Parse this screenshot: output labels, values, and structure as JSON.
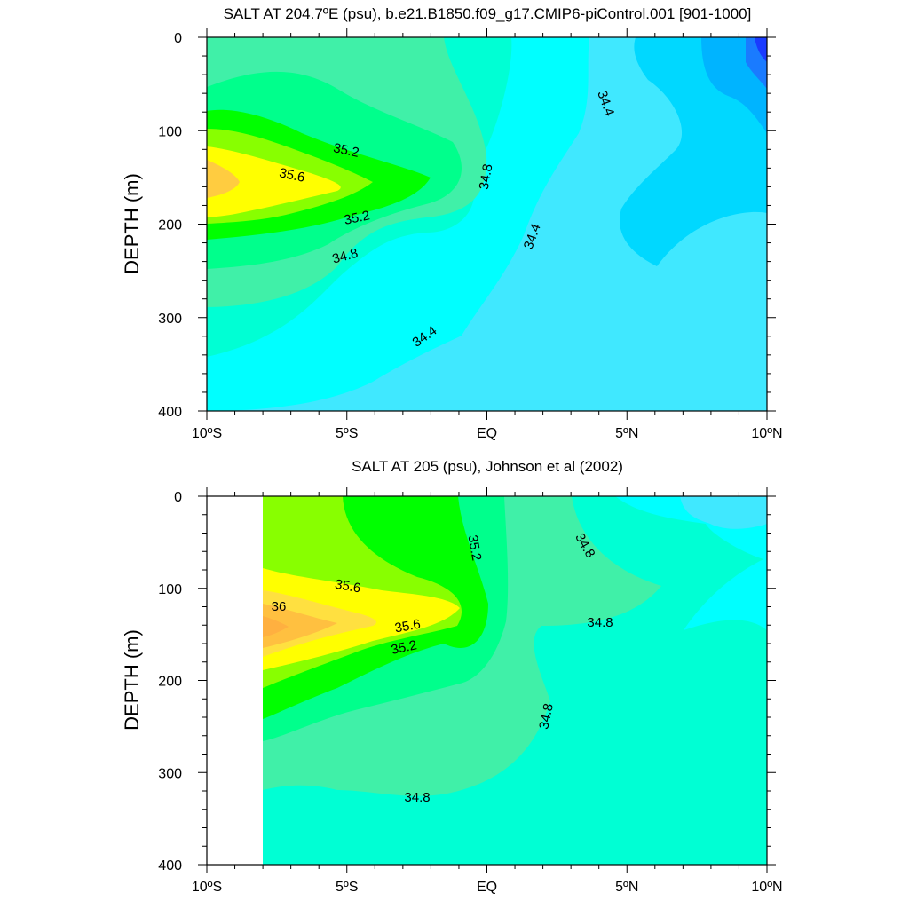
{
  "chart_data": [
    {
      "type": "contour",
      "title": "SALT AT 204.7ºE (psu), b.e21.B1850.f09_g17.CMIP6-piControl.001 [901-1000]",
      "ylabel": "DEPTH (m)",
      "xlabel": "",
      "x_ticks": [
        "10ºS",
        "5ºS",
        "EQ",
        "5ºN",
        "10ºN"
      ],
      "y_ticks": [
        "0",
        "100",
        "200",
        "300",
        "400"
      ],
      "xlim": [
        -10,
        10
      ],
      "ylim": [
        0,
        400
      ],
      "y_reversed": true,
      "contour_interval": 0.2,
      "contour_labels": [
        "35.2",
        "35.6",
        "35.2",
        "34.8",
        "34.8",
        "34.4",
        "34.4",
        "34.4"
      ],
      "salinity_range": [
        33.6,
        35.8
      ],
      "features": [
        {
          "description": "salinity maximum core",
          "lat": -10,
          "depth": 160,
          "value": 35.7
        },
        {
          "description": "fresh surface water",
          "lat": 10,
          "depth": 10,
          "value": 33.7
        }
      ],
      "colors": [
        "#1a3bff",
        "#1a7bff",
        "#00b4ff",
        "#00d8ff",
        "#40e8ff",
        "#00ffff",
        "#00ffd4",
        "#40f0a8",
        "#00ff00",
        "#88ff00",
        "#c8ff40",
        "#ffff00",
        "#ffcc40"
      ]
    },
    {
      "type": "contour",
      "title": "SALT AT 205 (psu), Johnson et al (2002)",
      "ylabel": "DEPTH (m)",
      "xlabel": "",
      "x_ticks": [
        "10ºS",
        "5ºS",
        "EQ",
        "5ºN",
        "10ºN"
      ],
      "y_ticks": [
        "0",
        "100",
        "200",
        "300",
        "400"
      ],
      "xlim": [
        -10,
        10
      ],
      "ylim": [
        0,
        400
      ],
      "y_reversed": true,
      "data_xlim": [
        -8,
        10
      ],
      "contour_interval": 0.2,
      "contour_labels": [
        "35.6",
        "36",
        "35.6",
        "35.2",
        "35.2",
        "34.8",
        "34.8",
        "34.8",
        "34.8"
      ],
      "features": [
        {
          "description": "salinity maximum core",
          "lat": -8,
          "depth": 145,
          "value": 36.1
        }
      ]
    }
  ]
}
